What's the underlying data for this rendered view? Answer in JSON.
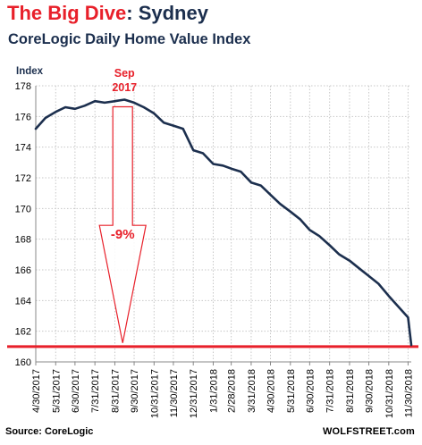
{
  "title": {
    "part1": "The Big Dive",
    "part2": ": Sydney"
  },
  "subtitle": "CoreLogic Daily Home Value Index",
  "source": "Source: CoreLogic",
  "brand": "WOLFSTREET.com",
  "colors": {
    "line": "#1c2f4e",
    "accent": "#e8202a",
    "grid": "#c8c8c8"
  },
  "chart_data": {
    "type": "line",
    "ylabel": "Index",
    "ylim": [
      160,
      178
    ],
    "yticks": [
      160,
      162,
      164,
      166,
      168,
      170,
      172,
      174,
      176,
      178
    ],
    "grid": true,
    "x_tick_labels": [
      "4/30/2017",
      "5/31/2017",
      "6/30/2017",
      "7/31/2017",
      "8/31/2017",
      "9/30/2017",
      "10/31/2017",
      "11/30/2017",
      "12/31/2017",
      "1/31/2018",
      "2/28/2018",
      "3/31/2018",
      "4/30/2018",
      "5/31/2018",
      "6/30/2018",
      "7/31/2018",
      "8/31/2018",
      "9/30/2018",
      "10/31/2018",
      "11/30/2018"
    ],
    "series": [
      {
        "x": [
          "2017-04-30",
          "2017-05-15",
          "2017-05-31",
          "2017-06-15",
          "2017-06-30",
          "2017-07-15",
          "2017-07-31",
          "2017-08-15",
          "2017-08-31",
          "2017-09-15",
          "2017-09-30",
          "2017-10-15",
          "2017-10-31",
          "2017-11-15",
          "2017-11-30",
          "2017-12-15",
          "2017-12-31",
          "2018-01-15",
          "2018-01-31",
          "2018-02-15",
          "2018-02-28",
          "2018-03-15",
          "2018-03-31",
          "2018-04-15",
          "2018-04-30",
          "2018-05-15",
          "2018-05-31",
          "2018-06-15",
          "2018-06-30",
          "2018-07-15",
          "2018-07-31",
          "2018-08-15",
          "2018-08-31",
          "2018-09-15",
          "2018-09-30",
          "2018-10-15",
          "2018-10-31",
          "2018-11-15",
          "2018-11-30",
          "2018-12-05"
        ],
        "values": [
          175.2,
          175.9,
          176.3,
          176.6,
          176.5,
          176.7,
          177.0,
          176.9,
          177.0,
          177.1,
          176.9,
          176.6,
          176.2,
          175.6,
          175.4,
          175.2,
          173.8,
          173.6,
          172.9,
          172.8,
          172.6,
          172.4,
          171.7,
          171.5,
          170.9,
          170.3,
          169.8,
          169.3,
          168.6,
          168.2,
          167.6,
          167.0,
          166.6,
          166.1,
          165.6,
          165.1,
          164.3,
          163.6,
          162.9,
          161.1
        ]
      }
    ],
    "reference_line": 161.0,
    "annotations": {
      "peak_label": [
        "Sep",
        "2017"
      ],
      "change_label": "-9%"
    }
  }
}
